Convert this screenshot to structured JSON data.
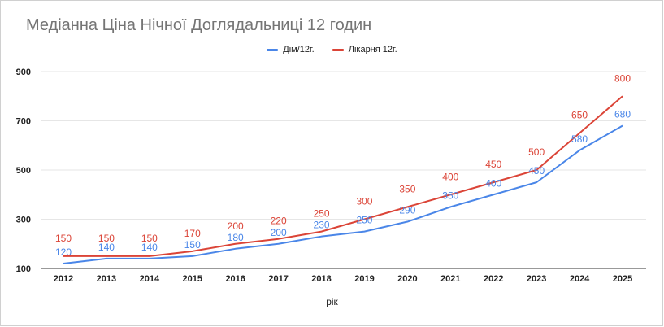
{
  "chart_data": {
    "type": "line",
    "title": "Медіанна Ціна Нічної Доглядальниці 12 годин",
    "xlabel": "рік",
    "ylabel": "",
    "ylim": [
      100,
      900
    ],
    "y_ticks": [
      100,
      300,
      500,
      700,
      900
    ],
    "grid": true,
    "legend_position": "top",
    "categories": [
      "2012",
      "2013",
      "2014",
      "2015",
      "2016",
      "2017",
      "2018",
      "2019",
      "2020",
      "2021",
      "2022",
      "2023",
      "2024",
      "2025"
    ],
    "series": [
      {
        "name": "Дім/12г.",
        "color": "#4a86e8",
        "values": [
          120,
          140,
          140,
          150,
          180,
          200,
          230,
          250,
          290,
          350,
          400,
          450,
          580,
          680
        ]
      },
      {
        "name": "Лікарня 12г.",
        "color": "#db4437",
        "values": [
          150,
          150,
          150,
          170,
          200,
          220,
          250,
          300,
          350,
          400,
          450,
          500,
          650,
          800
        ]
      }
    ]
  }
}
